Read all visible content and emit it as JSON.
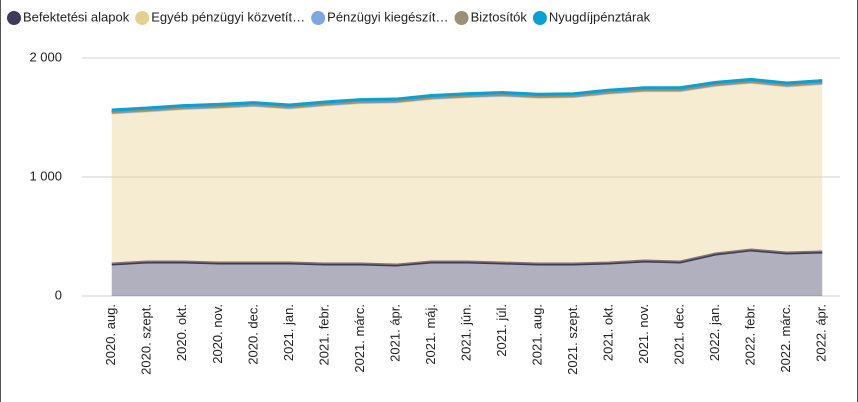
{
  "chart_data": {
    "type": "stacked_area",
    "categories": [
      "2020. aug.",
      "2020. szept.",
      "2020. okt.",
      "2020. nov.",
      "2020. dec.",
      "2021. jan.",
      "2021. febr.",
      "2021. márc.",
      "2021. ápr.",
      "2021. máj.",
      "2021. jún.",
      "2021. júl.",
      "2021. aug.",
      "2021. szept.",
      "2021. okt.",
      "2021. nov.",
      "2021. dec.",
      "2022. jan.",
      "2022. febr.",
      "2022. márc.",
      "2022. ápr."
    ],
    "series": [
      {
        "name": "Befektetési alapok",
        "color": "#3d3a5e",
        "values": [
          269,
          286,
          286,
          277,
          277,
          277,
          269,
          269,
          260,
          286,
          286,
          277,
          269,
          269,
          277,
          294,
          286,
          353,
          387,
          361,
          370
        ]
      },
      {
        "name": "Egyéb pénzügyi közvetít…",
        "color": "#e6cf8f",
        "values": [
          1269,
          1269,
          1289,
          1308,
          1323,
          1303,
          1336,
          1356,
          1370,
          1374,
          1389,
          1408,
          1401,
          1406,
          1428,
          1431,
          1439,
          1417,
          1408,
          1404,
          1415
        ]
      },
      {
        "name": "Pénzügyi kiegészít…",
        "color": "#7ea6e0",
        "values": [
          5,
          5,
          5,
          5,
          5,
          5,
          5,
          5,
          5,
          5,
          5,
          5,
          5,
          5,
          5,
          5,
          5,
          5,
          5,
          5,
          5
        ]
      },
      {
        "name": "Biztosítók",
        "color": "#9b8f76",
        "values": [
          5,
          5,
          5,
          5,
          5,
          5,
          5,
          5,
          5,
          5,
          5,
          5,
          5,
          5,
          5,
          5,
          5,
          5,
          5,
          5,
          5
        ]
      },
      {
        "name": "Nyugdíjpénztárak",
        "color": "#0ba0d2",
        "values": [
          15,
          15,
          15,
          15,
          15,
          15,
          15,
          15,
          15,
          15,
          15,
          15,
          15,
          15,
          15,
          15,
          15,
          15,
          15,
          15,
          15
        ]
      }
    ],
    "ylim": [
      0,
      2000
    ],
    "yticks": [
      0,
      {
        "value": 1000,
        "label": "1 000"
      },
      {
        "value": 2000,
        "label": "2 000"
      }
    ],
    "grid": true,
    "legend": "top"
  }
}
